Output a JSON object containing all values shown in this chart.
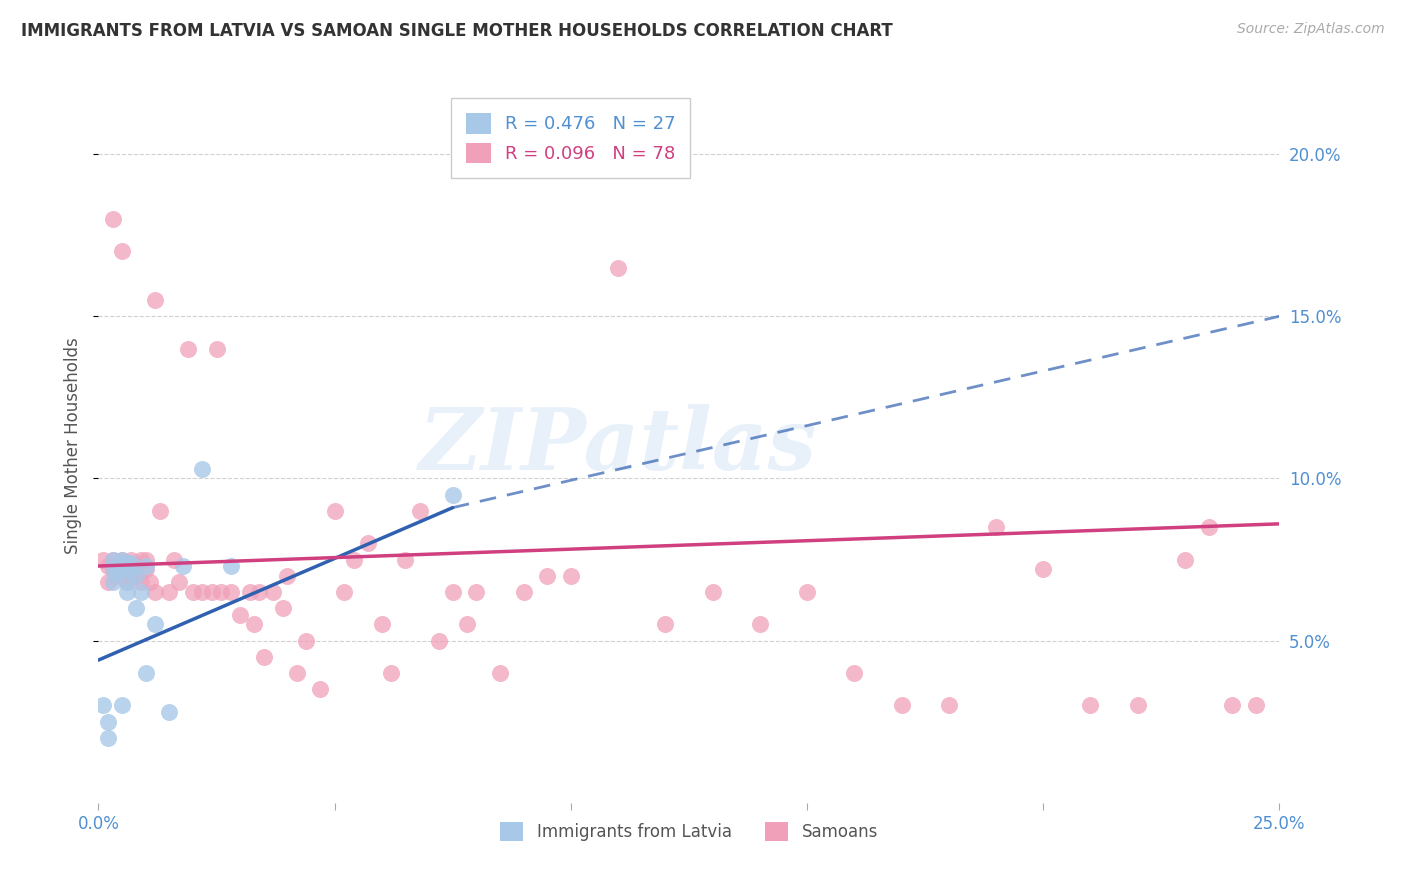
{
  "title": "IMMIGRANTS FROM LATVIA VS SAMOAN SINGLE MOTHER HOUSEHOLDS CORRELATION CHART",
  "source": "Source: ZipAtlas.com",
  "ylabel": "Single Mother Households",
  "xlim": [
    0.0,
    0.25
  ],
  "ylim": [
    0.0,
    0.22
  ],
  "x_ticks": [
    0.0,
    0.05,
    0.1,
    0.15,
    0.2,
    0.25
  ],
  "x_tick_labels": [
    "0.0%",
    "",
    "",
    "",
    "",
    "25.0%"
  ],
  "y_ticks": [
    0.05,
    0.1,
    0.15,
    0.2
  ],
  "y_tick_labels": [
    "5.0%",
    "10.0%",
    "15.0%",
    "20.0%"
  ],
  "legend1_label": "R = 0.476   N = 27",
  "legend2_label": "R = 0.096   N = 78",
  "legend_xlabel": "Immigrants from Latvia",
  "legend_ylabel": "Samoans",
  "watermark": "ZIPatlas",
  "blue_color": "#a8c8e8",
  "pink_color": "#f0a0b8",
  "blue_line_color": "#3060b0",
  "pink_line_color": "#d04080",
  "axis_tick_color": "#5090d0",
  "latvia_x": [
    0.001,
    0.002,
    0.002,
    0.003,
    0.003,
    0.003,
    0.004,
    0.004,
    0.005,
    0.005,
    0.005,
    0.006,
    0.006,
    0.006,
    0.007,
    0.007,
    0.008,
    0.008,
    0.009,
    0.01,
    0.01,
    0.012,
    0.015,
    0.018,
    0.022,
    0.028,
    0.075
  ],
  "latvia_y": [
    0.03,
    0.025,
    0.02,
    0.075,
    0.072,
    0.068,
    0.073,
    0.071,
    0.075,
    0.072,
    0.03,
    0.074,
    0.068,
    0.065,
    0.074,
    0.072,
    0.07,
    0.06,
    0.065,
    0.073,
    0.04,
    0.055,
    0.028,
    0.073,
    0.103,
    0.073,
    0.095
  ],
  "samoan_x": [
    0.001,
    0.002,
    0.002,
    0.003,
    0.003,
    0.004,
    0.004,
    0.005,
    0.005,
    0.006,
    0.006,
    0.007,
    0.007,
    0.008,
    0.008,
    0.009,
    0.009,
    0.01,
    0.01,
    0.011,
    0.012,
    0.013,
    0.015,
    0.016,
    0.017,
    0.019,
    0.02,
    0.022,
    0.024,
    0.025,
    0.026,
    0.028,
    0.03,
    0.032,
    0.033,
    0.034,
    0.035,
    0.037,
    0.039,
    0.04,
    0.042,
    0.044,
    0.047,
    0.05,
    0.052,
    0.054,
    0.057,
    0.06,
    0.062,
    0.065,
    0.068,
    0.072,
    0.075,
    0.078,
    0.08,
    0.085,
    0.09,
    0.095,
    0.1,
    0.11,
    0.12,
    0.13,
    0.14,
    0.15,
    0.16,
    0.17,
    0.18,
    0.19,
    0.2,
    0.21,
    0.22,
    0.23,
    0.235,
    0.24,
    0.245,
    0.003,
    0.005,
    0.012
  ],
  "samoan_y": [
    0.075,
    0.073,
    0.068,
    0.075,
    0.072,
    0.073,
    0.07,
    0.075,
    0.07,
    0.072,
    0.068,
    0.075,
    0.07,
    0.073,
    0.07,
    0.075,
    0.068,
    0.075,
    0.072,
    0.068,
    0.155,
    0.09,
    0.065,
    0.075,
    0.068,
    0.14,
    0.065,
    0.065,
    0.065,
    0.14,
    0.065,
    0.065,
    0.058,
    0.065,
    0.055,
    0.065,
    0.045,
    0.065,
    0.06,
    0.07,
    0.04,
    0.05,
    0.035,
    0.09,
    0.065,
    0.075,
    0.08,
    0.055,
    0.04,
    0.075,
    0.09,
    0.05,
    0.065,
    0.055,
    0.065,
    0.04,
    0.065,
    0.07,
    0.07,
    0.165,
    0.055,
    0.065,
    0.055,
    0.065,
    0.04,
    0.03,
    0.03,
    0.085,
    0.072,
    0.03,
    0.03,
    0.075,
    0.085,
    0.03,
    0.03,
    0.18,
    0.17,
    0.065
  ],
  "blue_line_start_x": 0.0,
  "blue_line_start_y": 0.044,
  "blue_line_solid_end_x": 0.075,
  "blue_line_solid_end_y": 0.091,
  "blue_line_dash_end_x": 0.25,
  "blue_line_dash_end_y": 0.15,
  "pink_line_start_x": 0.0,
  "pink_line_start_y": 0.073,
  "pink_line_end_x": 0.25,
  "pink_line_end_y": 0.086
}
